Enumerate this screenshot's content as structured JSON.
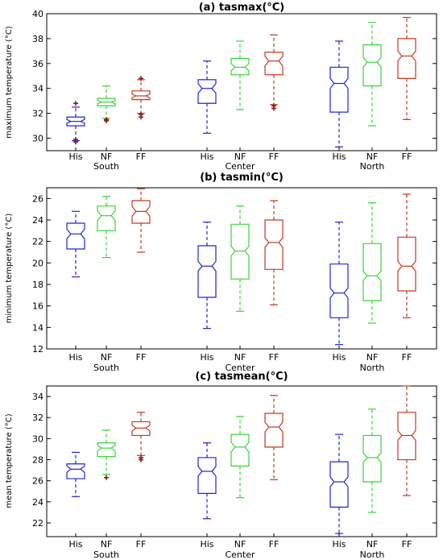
{
  "chart_data": [
    {
      "type": "box",
      "title": "(a) tasmax(°C)",
      "ylabel": "maximum temperature (°C)",
      "ylim": [
        29,
        40
      ],
      "yticks": [
        30,
        32,
        34,
        36,
        38,
        40
      ],
      "categories": [
        "His",
        "NF",
        "FF"
      ],
      "groups": [
        "South",
        "Center",
        "North"
      ],
      "series": [
        {
          "region": "South",
          "scenario": "His",
          "min": 29.8,
          "q1": 31.0,
          "median": 31.35,
          "q3": 31.7,
          "max": 32.5,
          "outliers": [
            32.8,
            29.9,
            29.7
          ]
        },
        {
          "region": "South",
          "scenario": "NF",
          "min": 31.6,
          "q1": 32.6,
          "median": 32.9,
          "q3": 33.2,
          "max": 34.2,
          "outliers": [
            31.4,
            31.5
          ]
        },
        {
          "region": "South",
          "scenario": "FF",
          "min": 32.0,
          "q1": 33.1,
          "median": 33.4,
          "q3": 33.8,
          "max": 34.7,
          "outliers": [
            34.8,
            31.7,
            31.9
          ]
        },
        {
          "region": "Center",
          "scenario": "His",
          "min": 30.4,
          "q1": 32.8,
          "median": 34.0,
          "q3": 34.7,
          "max": 36.2,
          "outliers": []
        },
        {
          "region": "Center",
          "scenario": "NF",
          "min": 32.3,
          "q1": 35.1,
          "median": 35.7,
          "q3": 36.4,
          "max": 37.8,
          "outliers": []
        },
        {
          "region": "Center",
          "scenario": "FF",
          "min": 32.7,
          "q1": 35.1,
          "median": 36.2,
          "q3": 36.9,
          "max": 38.3,
          "outliers": [
            32.4,
            32.6
          ]
        },
        {
          "region": "North",
          "scenario": "His",
          "min": 29.3,
          "q1": 32.1,
          "median": 34.4,
          "q3": 35.7,
          "max": 37.8,
          "outliers": []
        },
        {
          "region": "North",
          "scenario": "NF",
          "min": 31.0,
          "q1": 34.2,
          "median": 36.1,
          "q3": 37.5,
          "max": 39.3,
          "outliers": []
        },
        {
          "region": "North",
          "scenario": "FF",
          "min": 31.5,
          "q1": 34.8,
          "median": 36.6,
          "q3": 38.0,
          "max": 39.7,
          "outliers": []
        }
      ]
    },
    {
      "type": "box",
      "title": "(b) tasmin(°C)",
      "ylabel": "minimum temperature (°C)",
      "ylim": [
        12,
        27
      ],
      "yticks": [
        12,
        14,
        16,
        18,
        20,
        22,
        24,
        26
      ],
      "categories": [
        "His",
        "NF",
        "FF"
      ],
      "groups": [
        "South",
        "Center",
        "North"
      ],
      "series": [
        {
          "region": "South",
          "scenario": "His",
          "min": 18.7,
          "q1": 21.3,
          "median": 22.7,
          "q3": 23.7,
          "max": 24.8,
          "outliers": []
        },
        {
          "region": "South",
          "scenario": "NF",
          "min": 20.5,
          "q1": 23.0,
          "median": 24.4,
          "q3": 25.3,
          "max": 26.2,
          "outliers": []
        },
        {
          "region": "South",
          "scenario": "FF",
          "min": 21.0,
          "q1": 23.7,
          "median": 24.8,
          "q3": 25.8,
          "max": 26.9,
          "outliers": []
        },
        {
          "region": "Center",
          "scenario": "His",
          "min": 13.9,
          "q1": 16.8,
          "median": 19.7,
          "q3": 21.6,
          "max": 23.8,
          "outliers": []
        },
        {
          "region": "Center",
          "scenario": "NF",
          "min": 15.5,
          "q1": 18.5,
          "median": 21.1,
          "q3": 23.6,
          "max": 25.3,
          "outliers": []
        },
        {
          "region": "Center",
          "scenario": "FF",
          "min": 16.1,
          "q1": 19.4,
          "median": 21.9,
          "q3": 24.0,
          "max": 25.8,
          "outliers": []
        },
        {
          "region": "North",
          "scenario": "His",
          "min": 12.4,
          "q1": 14.9,
          "median": 17.2,
          "q3": 19.9,
          "max": 23.8,
          "outliers": []
        },
        {
          "region": "North",
          "scenario": "NF",
          "min": 14.4,
          "q1": 16.5,
          "median": 18.8,
          "q3": 21.8,
          "max": 25.6,
          "outliers": []
        },
        {
          "region": "North",
          "scenario": "FF",
          "min": 14.9,
          "q1": 17.4,
          "median": 19.7,
          "q3": 22.4,
          "max": 26.4,
          "outliers": []
        }
      ]
    },
    {
      "type": "box",
      "title": "(c) tasmean(°C)",
      "ylabel": "mean temperature (°C)",
      "ylim": [
        20.7,
        35
      ],
      "yticks": [
        22,
        24,
        26,
        28,
        30,
        32,
        34
      ],
      "categories": [
        "His",
        "NF",
        "FF"
      ],
      "groups": [
        "South",
        "Center",
        "North"
      ],
      "series": [
        {
          "region": "South",
          "scenario": "His",
          "min": 24.5,
          "q1": 26.2,
          "median": 27.1,
          "q3": 27.6,
          "max": 28.7,
          "outliers": []
        },
        {
          "region": "South",
          "scenario": "NF",
          "min": 26.6,
          "q1": 28.3,
          "median": 29.1,
          "q3": 29.6,
          "max": 30.8,
          "outliers": [
            26.3
          ]
        },
        {
          "region": "South",
          "scenario": "FF",
          "min": 28.4,
          "q1": 30.3,
          "median": 31.0,
          "q3": 31.6,
          "max": 32.5,
          "outliers": [
            28.2,
            28.0
          ]
        },
        {
          "region": "Center",
          "scenario": "His",
          "min": 22.4,
          "q1": 24.8,
          "median": 26.9,
          "q3": 28.2,
          "max": 29.6,
          "outliers": []
        },
        {
          "region": "Center",
          "scenario": "NF",
          "min": 24.4,
          "q1": 27.4,
          "median": 29.2,
          "q3": 30.4,
          "max": 32.1,
          "outliers": []
        },
        {
          "region": "Center",
          "scenario": "FF",
          "min": 26.1,
          "q1": 29.2,
          "median": 31.1,
          "q3": 32.4,
          "max": 34.1,
          "outliers": []
        },
        {
          "region": "North",
          "scenario": "His",
          "min": 21.0,
          "q1": 23.5,
          "median": 25.9,
          "q3": 27.8,
          "max": 30.4,
          "outliers": []
        },
        {
          "region": "North",
          "scenario": "NF",
          "min": 23.0,
          "q1": 25.9,
          "median": 28.2,
          "q3": 30.3,
          "max": 32.8,
          "outliers": []
        },
        {
          "region": "North",
          "scenario": "FF",
          "min": 24.6,
          "q1": 28.0,
          "median": 30.3,
          "q3": 32.5,
          "max": 35.0,
          "outliers": []
        }
      ]
    }
  ],
  "colors": {
    "His": "#2323d6",
    "NF": "#3ad43a",
    "FF": "#c23a22",
    "outlier": "#8b1a1a"
  }
}
